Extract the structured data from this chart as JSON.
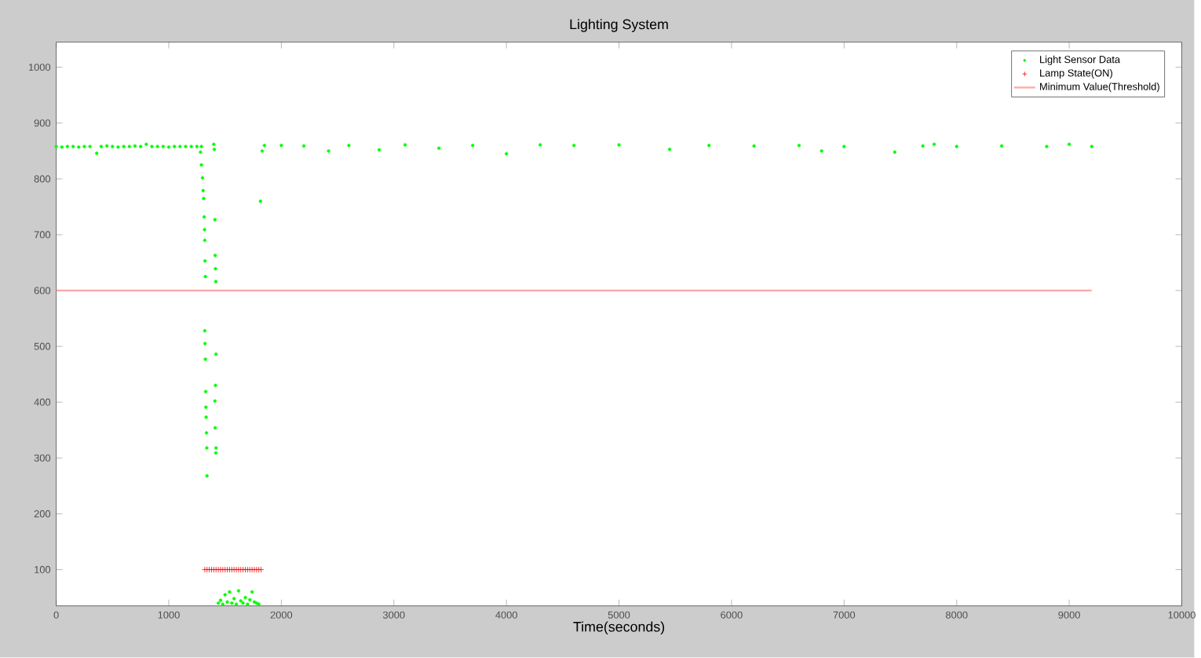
{
  "chart_data": {
    "type": "scatter",
    "title": "Lighting System",
    "xlabel": "Time(seconds)",
    "xlim": [
      0,
      10000
    ],
    "ylim": [
      35,
      1045
    ],
    "xticks": [
      0,
      1000,
      2000,
      3000,
      4000,
      5000,
      6000,
      7000,
      8000,
      9000,
      10000
    ],
    "yticks": [
      100,
      200,
      300,
      400,
      500,
      600,
      700,
      800,
      900,
      1000
    ],
    "legend": "top right",
    "grid": false,
    "series": [
      {
        "name": "Light Sensor Data",
        "marker": "circle",
        "color": "#00ff00",
        "x": [
          0,
          50,
          100,
          150,
          200,
          250,
          300,
          360,
          400,
          450,
          500,
          550,
          600,
          650,
          700,
          750,
          800,
          850,
          900,
          950,
          1000,
          1050,
          1100,
          1150,
          1200,
          1250,
          1290,
          1282,
          1290,
          1300,
          1305,
          1310,
          1315,
          1318,
          1320,
          1322,
          1325,
          1320,
          1322,
          1325,
          1328,
          1330,
          1332,
          1335,
          1338,
          1340,
          1400,
          1405,
          1410,
          1412,
          1415,
          1418,
          1420,
          1415,
          1410,
          1412,
          1418,
          1420,
          1440,
          1460,
          1480,
          1500,
          1520,
          1540,
          1560,
          1580,
          1600,
          1620,
          1640,
          1660,
          1680,
          1700,
          1720,
          1740,
          1760,
          1780,
          1800,
          1815,
          1830,
          1850,
          2000,
          2200,
          2420,
          2600,
          2870,
          3100,
          3400,
          3700,
          4000,
          4300,
          4600,
          5000,
          5450,
          5800,
          6200,
          6600,
          6800,
          7000,
          7450,
          7700,
          7800,
          8000,
          8400,
          8800,
          9000,
          9200
        ],
        "values": [
          858,
          857,
          858,
          858,
          857,
          858,
          858,
          846,
          858,
          859,
          858,
          857,
          858,
          858,
          859,
          858,
          862,
          858,
          858,
          858,
          857,
          858,
          858,
          858,
          858,
          858,
          858,
          848,
          825,
          802,
          779,
          765,
          732,
          709,
          690,
          653,
          625,
          528,
          505,
          477,
          419,
          391,
          373,
          345,
          318,
          268,
          862,
          853,
          727,
          663,
          639,
          616,
          486,
          430,
          402,
          354,
          309,
          318,
          40,
          45,
          38,
          55,
          42,
          60,
          40,
          48,
          38,
          62,
          44,
          40,
          50,
          38,
          46,
          60,
          42,
          40,
          38,
          760,
          850,
          860,
          860,
          859,
          850,
          860,
          852,
          861,
          855,
          860,
          845,
          861,
          860,
          861,
          853,
          860,
          859,
          860,
          850,
          858,
          848,
          859,
          862,
          858,
          859,
          858,
          862,
          858
        ]
      },
      {
        "name": "Lamp State(ON)",
        "marker": "cross",
        "color": "#ff0000",
        "x": [
          1320,
          1340,
          1360,
          1380,
          1400,
          1420,
          1440,
          1460,
          1480,
          1500,
          1520,
          1540,
          1560,
          1580,
          1600,
          1620,
          1640,
          1660,
          1680,
          1700,
          1720,
          1740,
          1760,
          1780,
          1800,
          1820
        ],
        "values": [
          100,
          100,
          100,
          100,
          100,
          100,
          100,
          100,
          100,
          100,
          100,
          100,
          100,
          100,
          100,
          100,
          100,
          100,
          100,
          100,
          100,
          100,
          100,
          100,
          100,
          100
        ]
      },
      {
        "name": "Minimum Value(Threshold)",
        "type": "line",
        "line_style": "solid",
        "color": "#ffaaaa",
        "x": [
          0,
          9200
        ],
        "values": [
          600,
          600
        ]
      }
    ]
  }
}
